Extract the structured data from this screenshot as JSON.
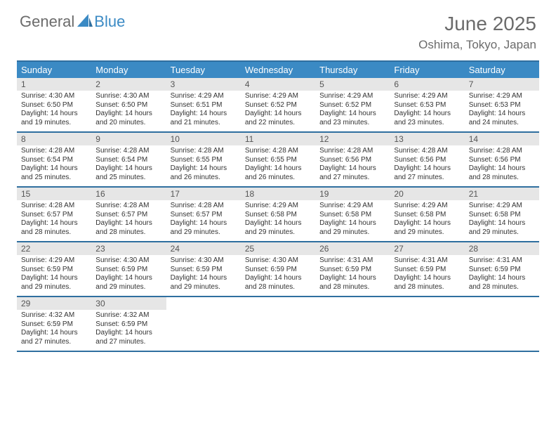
{
  "brand": {
    "part1": "General",
    "part2": "Blue",
    "sail_color": "#3b8ac4"
  },
  "title": "June 2025",
  "location": "Oshima, Tokyo, Japan",
  "colors": {
    "header_bg": "#3b8ac4",
    "header_border": "#2f6f9f",
    "daynum_bg": "#e6e6e6",
    "text_muted": "#6b6b6b",
    "text_body": "#333333"
  },
  "dow": [
    "Sunday",
    "Monday",
    "Tuesday",
    "Wednesday",
    "Thursday",
    "Friday",
    "Saturday"
  ],
  "weeks": [
    [
      {
        "d": "1",
        "sr": "Sunrise: 4:30 AM",
        "ss": "Sunset: 6:50 PM",
        "dl1": "Daylight: 14 hours",
        "dl2": "and 19 minutes."
      },
      {
        "d": "2",
        "sr": "Sunrise: 4:30 AM",
        "ss": "Sunset: 6:50 PM",
        "dl1": "Daylight: 14 hours",
        "dl2": "and 20 minutes."
      },
      {
        "d": "3",
        "sr": "Sunrise: 4:29 AM",
        "ss": "Sunset: 6:51 PM",
        "dl1": "Daylight: 14 hours",
        "dl2": "and 21 minutes."
      },
      {
        "d": "4",
        "sr": "Sunrise: 4:29 AM",
        "ss": "Sunset: 6:52 PM",
        "dl1": "Daylight: 14 hours",
        "dl2": "and 22 minutes."
      },
      {
        "d": "5",
        "sr": "Sunrise: 4:29 AM",
        "ss": "Sunset: 6:52 PM",
        "dl1": "Daylight: 14 hours",
        "dl2": "and 23 minutes."
      },
      {
        "d": "6",
        "sr": "Sunrise: 4:29 AM",
        "ss": "Sunset: 6:53 PM",
        "dl1": "Daylight: 14 hours",
        "dl2": "and 23 minutes."
      },
      {
        "d": "7",
        "sr": "Sunrise: 4:29 AM",
        "ss": "Sunset: 6:53 PM",
        "dl1": "Daylight: 14 hours",
        "dl2": "and 24 minutes."
      }
    ],
    [
      {
        "d": "8",
        "sr": "Sunrise: 4:28 AM",
        "ss": "Sunset: 6:54 PM",
        "dl1": "Daylight: 14 hours",
        "dl2": "and 25 minutes."
      },
      {
        "d": "9",
        "sr": "Sunrise: 4:28 AM",
        "ss": "Sunset: 6:54 PM",
        "dl1": "Daylight: 14 hours",
        "dl2": "and 25 minutes."
      },
      {
        "d": "10",
        "sr": "Sunrise: 4:28 AM",
        "ss": "Sunset: 6:55 PM",
        "dl1": "Daylight: 14 hours",
        "dl2": "and 26 minutes."
      },
      {
        "d": "11",
        "sr": "Sunrise: 4:28 AM",
        "ss": "Sunset: 6:55 PM",
        "dl1": "Daylight: 14 hours",
        "dl2": "and 26 minutes."
      },
      {
        "d": "12",
        "sr": "Sunrise: 4:28 AM",
        "ss": "Sunset: 6:56 PM",
        "dl1": "Daylight: 14 hours",
        "dl2": "and 27 minutes."
      },
      {
        "d": "13",
        "sr": "Sunrise: 4:28 AM",
        "ss": "Sunset: 6:56 PM",
        "dl1": "Daylight: 14 hours",
        "dl2": "and 27 minutes."
      },
      {
        "d": "14",
        "sr": "Sunrise: 4:28 AM",
        "ss": "Sunset: 6:56 PM",
        "dl1": "Daylight: 14 hours",
        "dl2": "and 28 minutes."
      }
    ],
    [
      {
        "d": "15",
        "sr": "Sunrise: 4:28 AM",
        "ss": "Sunset: 6:57 PM",
        "dl1": "Daylight: 14 hours",
        "dl2": "and 28 minutes."
      },
      {
        "d": "16",
        "sr": "Sunrise: 4:28 AM",
        "ss": "Sunset: 6:57 PM",
        "dl1": "Daylight: 14 hours",
        "dl2": "and 28 minutes."
      },
      {
        "d": "17",
        "sr": "Sunrise: 4:28 AM",
        "ss": "Sunset: 6:57 PM",
        "dl1": "Daylight: 14 hours",
        "dl2": "and 29 minutes."
      },
      {
        "d": "18",
        "sr": "Sunrise: 4:29 AM",
        "ss": "Sunset: 6:58 PM",
        "dl1": "Daylight: 14 hours",
        "dl2": "and 29 minutes."
      },
      {
        "d": "19",
        "sr": "Sunrise: 4:29 AM",
        "ss": "Sunset: 6:58 PM",
        "dl1": "Daylight: 14 hours",
        "dl2": "and 29 minutes."
      },
      {
        "d": "20",
        "sr": "Sunrise: 4:29 AM",
        "ss": "Sunset: 6:58 PM",
        "dl1": "Daylight: 14 hours",
        "dl2": "and 29 minutes."
      },
      {
        "d": "21",
        "sr": "Sunrise: 4:29 AM",
        "ss": "Sunset: 6:58 PM",
        "dl1": "Daylight: 14 hours",
        "dl2": "and 29 minutes."
      }
    ],
    [
      {
        "d": "22",
        "sr": "Sunrise: 4:29 AM",
        "ss": "Sunset: 6:59 PM",
        "dl1": "Daylight: 14 hours",
        "dl2": "and 29 minutes."
      },
      {
        "d": "23",
        "sr": "Sunrise: 4:30 AM",
        "ss": "Sunset: 6:59 PM",
        "dl1": "Daylight: 14 hours",
        "dl2": "and 29 minutes."
      },
      {
        "d": "24",
        "sr": "Sunrise: 4:30 AM",
        "ss": "Sunset: 6:59 PM",
        "dl1": "Daylight: 14 hours",
        "dl2": "and 29 minutes."
      },
      {
        "d": "25",
        "sr": "Sunrise: 4:30 AM",
        "ss": "Sunset: 6:59 PM",
        "dl1": "Daylight: 14 hours",
        "dl2": "and 28 minutes."
      },
      {
        "d": "26",
        "sr": "Sunrise: 4:31 AM",
        "ss": "Sunset: 6:59 PM",
        "dl1": "Daylight: 14 hours",
        "dl2": "and 28 minutes."
      },
      {
        "d": "27",
        "sr": "Sunrise: 4:31 AM",
        "ss": "Sunset: 6:59 PM",
        "dl1": "Daylight: 14 hours",
        "dl2": "and 28 minutes."
      },
      {
        "d": "28",
        "sr": "Sunrise: 4:31 AM",
        "ss": "Sunset: 6:59 PM",
        "dl1": "Daylight: 14 hours",
        "dl2": "and 28 minutes."
      }
    ],
    [
      {
        "d": "29",
        "sr": "Sunrise: 4:32 AM",
        "ss": "Sunset: 6:59 PM",
        "dl1": "Daylight: 14 hours",
        "dl2": "and 27 minutes."
      },
      {
        "d": "30",
        "sr": "Sunrise: 4:32 AM",
        "ss": "Sunset: 6:59 PM",
        "dl1": "Daylight: 14 hours",
        "dl2": "and 27 minutes."
      },
      {
        "empty": true
      },
      {
        "empty": true
      },
      {
        "empty": true
      },
      {
        "empty": true
      },
      {
        "empty": true
      }
    ]
  ]
}
